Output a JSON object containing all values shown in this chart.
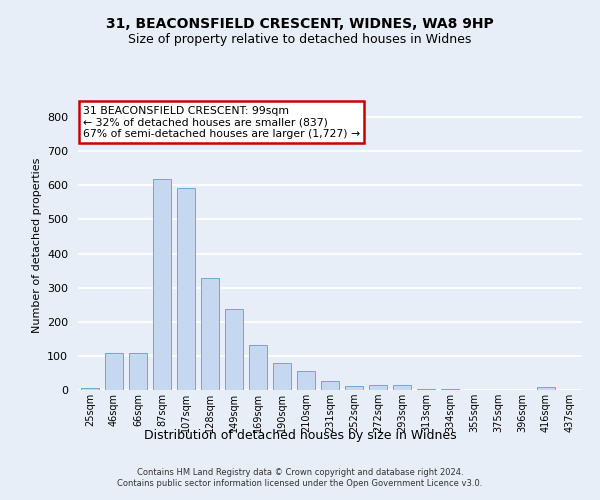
{
  "title_line1": "31, BEACONSFIELD CRESCENT, WIDNES, WA8 9HP",
  "title_line2": "Size of property relative to detached houses in Widnes",
  "xlabel": "Distribution of detached houses by size in Widnes",
  "ylabel": "Number of detached properties",
  "categories": [
    "25sqm",
    "46sqm",
    "66sqm",
    "87sqm",
    "107sqm",
    "128sqm",
    "149sqm",
    "169sqm",
    "190sqm",
    "210sqm",
    "231sqm",
    "252sqm",
    "272sqm",
    "293sqm",
    "313sqm",
    "334sqm",
    "355sqm",
    "375sqm",
    "396sqm",
    "416sqm",
    "437sqm"
  ],
  "values": [
    7,
    108,
    108,
    618,
    592,
    328,
    236,
    133,
    78,
    56,
    25,
    12,
    15,
    15,
    4,
    2,
    0,
    0,
    0,
    8,
    0
  ],
  "bar_color": "#c5d8f0",
  "bar_edge_color": "#6aaad4",
  "annotation_text": "31 BEACONSFIELD CRESCENT: 99sqm\n← 32% of detached houses are smaller (837)\n67% of semi-detached houses are larger (1,727) →",
  "annotation_box_color": "#ffffff",
  "annotation_box_edge": "#cc0000",
  "ylim": [
    0,
    850
  ],
  "yticks": [
    0,
    100,
    200,
    300,
    400,
    500,
    600,
    700,
    800
  ],
  "background_color": "#e8eef8",
  "grid_color": "#ffffff",
  "footnote": "Contains HM Land Registry data © Crown copyright and database right 2024.\nContains public sector information licensed under the Open Government Licence v3.0."
}
